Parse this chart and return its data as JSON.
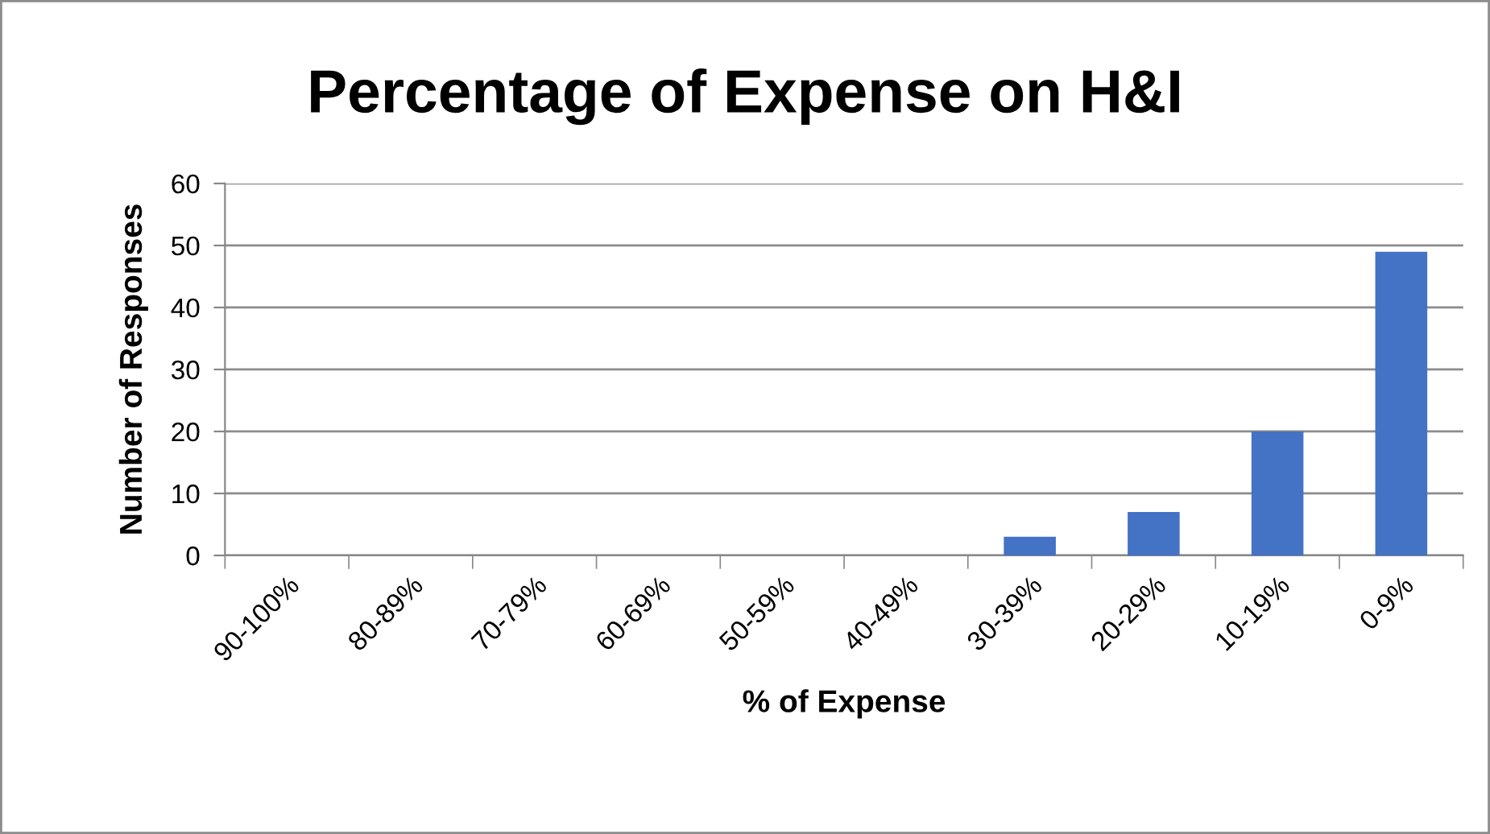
{
  "chart_data": {
    "type": "bar",
    "title": "Percentage of Expense on H&I",
    "xlabel": "% of Expense",
    "ylabel": "Number of Responses",
    "categories": [
      "90-100%",
      "80-89%",
      "70-79%",
      "60-69%",
      "50-59%",
      "40-49%",
      "30-39%",
      "20-29%",
      "10-19%",
      "0-9%"
    ],
    "values": [
      0,
      0,
      0,
      0,
      0,
      0,
      3,
      7,
      20,
      49
    ],
    "color": "#4472c4",
    "ylim": [
      0,
      60
    ],
    "yticks": [
      0,
      10,
      20,
      30,
      40,
      50,
      60
    ],
    "grid": "y",
    "legend": false
  }
}
